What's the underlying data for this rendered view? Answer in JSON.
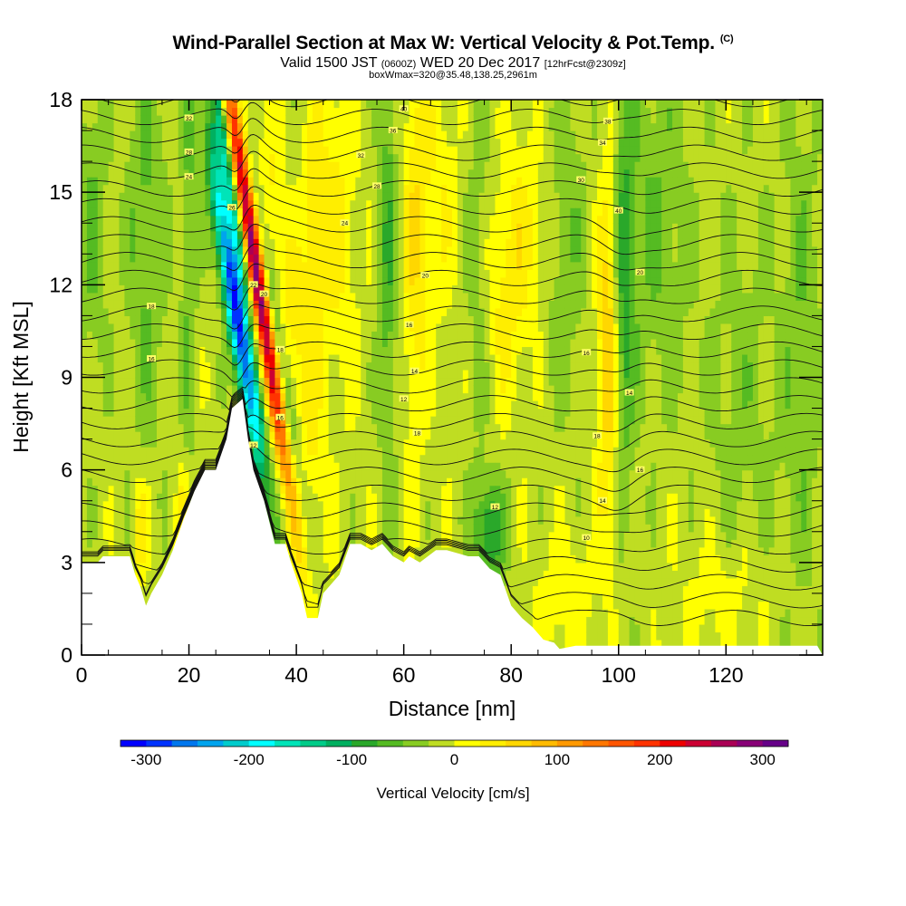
{
  "chart_data": {
    "type": "heatmap",
    "title": "Wind-Parallel Section at Max W: Vertical Velocity & Pot.Temp.",
    "title_mark": "(C)",
    "subtitle": {
      "valid": "Valid 1500 JST",
      "utc": "(0600Z)",
      "date": "WED 20 Dec 2017",
      "fcst": "[12hrFcst@2309z]"
    },
    "box_info": "boxWmax=320@35.48,138.25,2961m",
    "xlabel": "Distance [nm]",
    "ylabel": "Height [Kft MSL]",
    "xlim": [
      0,
      138
    ],
    "ylim": [
      0,
      18
    ],
    "x_ticks": [
      "0",
      "20",
      "40",
      "60",
      "80",
      "100",
      "120"
    ],
    "y_ticks": [
      "0",
      "3",
      "6",
      "9",
      "12",
      "15",
      "18"
    ],
    "colorbar": {
      "label": "Vertical Velocity [cm/s]",
      "range": [
        -325,
        325
      ],
      "tick_labels": [
        "-300",
        "-200",
        "-100",
        "0",
        "100",
        "200",
        "300"
      ],
      "colors": [
        "#0000ff",
        "#0033ff",
        "#0077ee",
        "#00a4ee",
        "#00cccc",
        "#00ffff",
        "#00e4b8",
        "#00cc88",
        "#00b060",
        "#2aa82a",
        "#55bb22",
        "#88cc22",
        "#bfdd22",
        "#ffff00",
        "#ffee00",
        "#ffd700",
        "#ffbb00",
        "#ff9900",
        "#ff7700",
        "#ff5500",
        "#ff3300",
        "#ee0000",
        "#cc0033",
        "#aa0055",
        "#880077",
        "#660088"
      ]
    },
    "terrain_profile": [
      [
        0,
        3.0
      ],
      [
        3,
        3.0
      ],
      [
        4,
        3.2
      ],
      [
        9,
        3.2
      ],
      [
        10,
        2.6
      ],
      [
        11,
        2.2
      ],
      [
        12,
        1.6
      ],
      [
        13,
        2.0
      ],
      [
        15,
        2.6
      ],
      [
        17,
        3.4
      ],
      [
        19,
        4.4
      ],
      [
        21,
        5.3
      ],
      [
        23,
        6.0
      ],
      [
        25,
        6.0
      ],
      [
        27,
        7.0
      ],
      [
        28,
        8.0
      ],
      [
        30,
        8.3
      ],
      [
        31,
        7.0
      ],
      [
        32,
        6.0
      ],
      [
        34,
        5.0
      ],
      [
        36,
        3.6
      ],
      [
        38,
        3.6
      ],
      [
        39,
        3.0
      ],
      [
        41,
        2.0
      ],
      [
        42,
        1.2
      ],
      [
        44,
        1.2
      ],
      [
        45,
        2.0
      ],
      [
        47,
        2.4
      ],
      [
        48,
        2.6
      ],
      [
        50,
        3.6
      ],
      [
        52,
        3.6
      ],
      [
        54,
        3.4
      ],
      [
        56,
        3.6
      ],
      [
        58,
        3.2
      ],
      [
        60,
        3.0
      ],
      [
        61,
        3.2
      ],
      [
        63,
        3.0
      ],
      [
        66,
        3.4
      ],
      [
        68,
        3.4
      ],
      [
        72,
        3.2
      ],
      [
        74,
        3.2
      ],
      [
        76,
        2.8
      ],
      [
        78,
        2.6
      ],
      [
        80,
        1.6
      ],
      [
        82,
        1.2
      ],
      [
        84,
        0.9
      ],
      [
        86,
        0.5
      ],
      [
        88,
        0.4
      ],
      [
        89,
        0.2
      ],
      [
        92,
        0.3
      ],
      [
        96,
        0.3
      ],
      [
        100,
        0.3
      ],
      [
        110,
        0.3
      ],
      [
        137,
        0.3
      ]
    ],
    "w_features": [
      {
        "x": 29,
        "z": 11.0,
        "sx": 1.3,
        "sz": 3.6,
        "tilt": -0.22,
        "w": -300
      },
      {
        "x": 27.5,
        "z": 15.5,
        "sx": 1.0,
        "sz": 2.8,
        "tilt": -0.22,
        "w": -140
      },
      {
        "x": 32.5,
        "z": 12.5,
        "sx": 1.2,
        "sz": 5.0,
        "tilt": -0.22,
        "w": 320
      },
      {
        "x": 35.5,
        "z": 11.0,
        "sx": 1.0,
        "sz": 4.0,
        "tilt": -0.22,
        "w": -90
      },
      {
        "x": 38.5,
        "z": 12.0,
        "sx": 1.6,
        "sz": 5.0,
        "tilt": -0.2,
        "w": 50
      },
      {
        "x": 43,
        "z": 13.0,
        "sx": 1.4,
        "sz": 4.0,
        "tilt": 0,
        "w": 35
      },
      {
        "x": 47,
        "z": 14.0,
        "sx": 3.0,
        "sz": 4.0,
        "tilt": 0,
        "w": 45
      },
      {
        "x": 57,
        "z": 13.0,
        "sx": 1.2,
        "sz": 5.0,
        "tilt": 0,
        "w": -60
      },
      {
        "x": 62,
        "z": 13.0,
        "sx": 1.5,
        "sz": 5.0,
        "tilt": 0,
        "w": 50
      },
      {
        "x": 66,
        "z": 15.0,
        "sx": 3.0,
        "sz": 3.0,
        "tilt": 0,
        "w": 35
      },
      {
        "x": 74,
        "z": 12.0,
        "sx": 2.0,
        "sz": 4.0,
        "tilt": 0,
        "w": -40
      },
      {
        "x": 76,
        "z": 4.0,
        "sx": 2.0,
        "sz": 1.2,
        "tilt": 0,
        "w": -90
      },
      {
        "x": 80,
        "z": 12.5,
        "sx": 4.0,
        "sz": 3.0,
        "tilt": 0.15,
        "w": 55
      },
      {
        "x": 90,
        "z": 14.0,
        "sx": 3.0,
        "sz": 4.0,
        "tilt": 0,
        "w": -35
      },
      {
        "x": 98,
        "z": 10.0,
        "sx": 1.4,
        "sz": 4.0,
        "tilt": 0,
        "w": 90
      },
      {
        "x": 101,
        "z": 12.0,
        "sx": 1.4,
        "sz": 5.0,
        "tilt": 0,
        "w": -70
      },
      {
        "x": 107,
        "z": 14.0,
        "sx": 4.0,
        "sz": 4.0,
        "tilt": 0,
        "w": -40
      },
      {
        "x": 2,
        "z": 14.0,
        "sx": 2.0,
        "sz": 3.5,
        "tilt": 0,
        "w": -40
      },
      {
        "x": 12,
        "z": 14.0,
        "sx": 2.5,
        "sz": 5.0,
        "tilt": 0,
        "w": -45
      },
      {
        "x": 20,
        "z": 14.0,
        "sx": 1.0,
        "sz": 6.0,
        "tilt": 0,
        "w": -45
      },
      {
        "x": 11,
        "z": 4.0,
        "sx": 1.0,
        "sz": 1.2,
        "tilt": 0,
        "w": 60
      },
      {
        "x": 19,
        "z": 4.0,
        "sx": 1.0,
        "sz": 1.5,
        "tilt": 0,
        "w": 55
      },
      {
        "x": 123,
        "z": 8.0,
        "sx": 5.0,
        "sz": 5.0,
        "tilt": 0,
        "w": -25
      },
      {
        "x": 134,
        "z": 10.0,
        "sx": 2.5,
        "sz": 6.0,
        "tilt": 0,
        "w": -35
      },
      {
        "x": 120,
        "z": 2.0,
        "sx": 6.0,
        "sz": 1.5,
        "tilt": 0,
        "w": 30
      },
      {
        "x": 90,
        "z": 2.0,
        "sx": 4.0,
        "sz": 1.5,
        "tilt": 0,
        "w": 30
      }
    ],
    "w_background": -12,
    "theta_contours": {
      "labels": [
        {
          "text": "10",
          "x": 94,
          "z": 3.8
        },
        {
          "text": "14",
          "x": 102,
          "z": 8.5
        },
        {
          "text": "16",
          "x": 94,
          "z": 9.8
        },
        {
          "text": "18",
          "x": 62.5,
          "z": 7.2
        },
        {
          "text": "12",
          "x": 60,
          "z": 8.3
        },
        {
          "text": "14",
          "x": 62,
          "z": 9.2
        },
        {
          "text": "16",
          "x": 61,
          "z": 10.7
        },
        {
          "text": "20",
          "x": 64,
          "z": 12.3
        },
        {
          "text": "24",
          "x": 49,
          "z": 14.0
        },
        {
          "text": "28",
          "x": 55,
          "z": 15.2
        },
        {
          "text": "32",
          "x": 52,
          "z": 16.2
        },
        {
          "text": "36",
          "x": 58,
          "z": 17.0
        },
        {
          "text": "40",
          "x": 60,
          "z": 17.7
        },
        {
          "text": "30",
          "x": 93,
          "z": 15.4
        },
        {
          "text": "34",
          "x": 97,
          "z": 16.6
        },
        {
          "text": "38",
          "x": 98,
          "z": 17.3
        },
        {
          "text": "40",
          "x": 100,
          "z": 14.4
        },
        {
          "text": "20",
          "x": 104,
          "z": 12.4
        },
        {
          "text": "16",
          "x": 104,
          "z": 6.0
        },
        {
          "text": "14",
          "x": 97,
          "z": 5.0
        },
        {
          "text": "18",
          "x": 96,
          "z": 7.1
        },
        {
          "text": "12",
          "x": 77,
          "z": 4.8
        },
        {
          "text": "18",
          "x": 13,
          "z": 11.3
        },
        {
          "text": "16",
          "x": 13,
          "z": 9.6
        },
        {
          "text": "32",
          "x": 20,
          "z": 17.4
        },
        {
          "text": "28",
          "x": 20,
          "z": 16.3
        },
        {
          "text": "24",
          "x": 20,
          "z": 15.5
        },
        {
          "text": "12",
          "x": 32,
          "z": 6.8
        },
        {
          "text": "16",
          "x": 37,
          "z": 7.7
        },
        {
          "text": "18",
          "x": 37,
          "z": 9.9
        },
        {
          "text": "20",
          "x": 34,
          "z": 11.7
        },
        {
          "text": "22",
          "x": 32,
          "z": 12.0
        },
        {
          "text": "26",
          "x": 28,
          "z": 14.5
        }
      ]
    }
  }
}
